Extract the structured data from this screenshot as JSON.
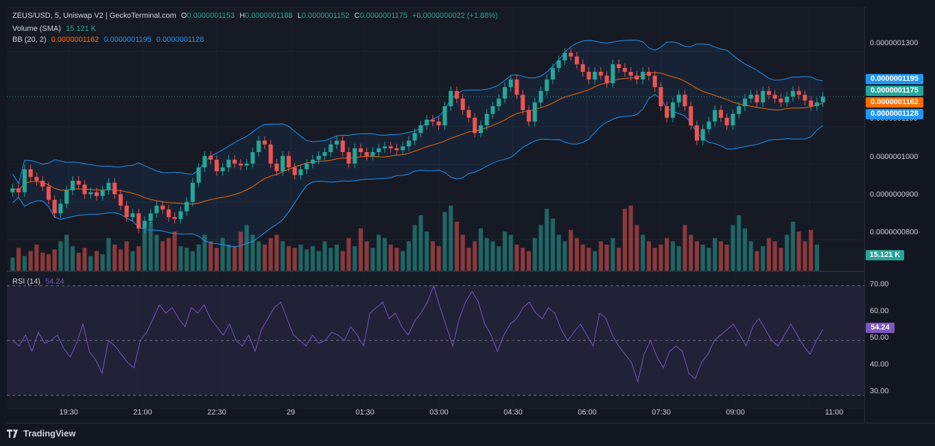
{
  "header": {
    "symbol": "ZEUS/USD, 5, Uniswap V2 | GeckoTerminal.com",
    "o_label": "O",
    "o_value": "0.0000001153",
    "h_label": "H",
    "h_value": "0.0000001188",
    "l_label": "L",
    "l_value": "0.0000001152",
    "c_label": "C",
    "c_value": "0.0000001175",
    "change": "+0.0000000022 (+1.88%)"
  },
  "volume_legend": {
    "label": "Volume (SMA)",
    "value": "15.121 K"
  },
  "bb_legend": {
    "label": "BB (20, 2)",
    "basis": "0.0000001162",
    "upper": "0.0000001195",
    "lower": "0.0000001128"
  },
  "rsi_legend": {
    "label": "RSI (14)",
    "value": "54.24"
  },
  "price_axis": [
    "0.0000001300",
    "0.0000001100",
    "0.0000001000",
    "0.0000000900",
    "0.0000000800"
  ],
  "price_badges": {
    "upper": "0.0000001195",
    "close": "0.0000001175",
    "basis": "0.0000001162",
    "lower": "0.0000001128",
    "volume": "15.121 K"
  },
  "rsi_axis": [
    "70.00",
    "60.00",
    "50.00",
    "40.00",
    "30.00"
  ],
  "rsi_badge": "54.24",
  "time_axis": [
    "19:30",
    "21:00",
    "22:30",
    "29",
    "01:30",
    "03:00",
    "04:30",
    "06:00",
    "07:30",
    "09:00",
    "11:00"
  ],
  "branding": "TradingView",
  "colors": {
    "up": "#26a69a",
    "down": "#ef5350",
    "basis": "#ff6d00",
    "band": "#2196f3",
    "rsi": "#7e57c2"
  },
  "chart_data": {
    "type": "candlestick",
    "price_range": [
      7.2e-08,
      1.41e-07
    ],
    "close_line": 1.175e-07,
    "rsi_range": [
      25,
      75
    ],
    "rsi_levels": [
      70,
      50,
      30
    ],
    "candles_close": [
      9.35e-08,
      9.25e-08,
      9.85e-08,
      9.65e-08,
      9.55e-08,
      9.4e-08,
      9.05e-08,
      8.7e-08,
      8.95e-08,
      9.3e-08,
      9.55e-08,
      9.45e-08,
      9.2e-08,
      9.25e-08,
      9.15e-08,
      9.3e-08,
      9.5e-08,
      9.2e-08,
      8.9e-08,
      8.6e-08,
      8.7e-08,
      8.3e-08,
      8.5e-08,
      8.7e-08,
      8.9e-08,
      8.8e-08,
      8.6e-08,
      8.55e-08,
      8.75e-08,
      9e-08,
      9.5e-08,
      9.9e-08,
      1.02e-07,
      1.01e-07,
      9.8e-08,
      9.9e-08,
      1.01e-07,
      1e-07,
      9.95e-08,
      1e-07,
      1.03e-07,
      1.06e-07,
      1.05e-07,
      1e-07,
      9.8e-08,
      1.02e-07,
      9.9e-08,
      9.7e-08,
      9.85e-08,
      1e-07,
      1.01e-07,
      1.02e-07,
      1.03e-07,
      1.05e-07,
      1.06e-07,
      1.03e-07,
      1e-07,
      1.04e-07,
      1.03e-07,
      1.02e-07,
      1.03e-07,
      1.04e-07,
      1.045e-07,
      1.04e-07,
      1.035e-07,
      1.045e-07,
      1.06e-07,
      1.08e-07,
      1.1e-07,
      1.115e-07,
      1.11e-07,
      1.1e-07,
      1.15e-07,
      1.19e-07,
      1.17e-07,
      1.14e-07,
      1.12e-07,
      1.08e-07,
      1.1e-07,
      1.13e-07,
      1.15e-07,
      1.17e-07,
      1.2e-07,
      1.22e-07,
      1.18e-07,
      1.14e-07,
      1.11e-07,
      1.16e-07,
      1.19e-07,
      1.22e-07,
      1.25e-07,
      1.27e-07,
      1.29e-07,
      1.28e-07,
      1.26e-07,
      1.24e-07,
      1.22e-07,
      1.24e-07,
      1.23e-07,
      1.21e-07,
      1.26e-07,
      1.25e-07,
      1.24e-07,
      1.23e-07,
      1.22e-07,
      1.24e-07,
      1.23e-07,
      1.2e-07,
      1.15e-07,
      1.12e-07,
      1.16e-07,
      1.18e-07,
      1.15e-07,
      1.1e-07,
      1.06e-07,
      1.09e-07,
      1.11e-07,
      1.14e-07,
      1.12e-07,
      1.1e-07,
      1.13e-07,
      1.15e-07,
      1.17e-07,
      1.18e-07,
      1.16e-07,
      1.19e-07,
      1.18e-07,
      1.17e-07,
      1.16e-07,
      1.175e-07,
      1.19e-07,
      1.18e-07,
      1.165e-07,
      1.15e-07,
      1.16e-07,
      1.175e-07
    ],
    "rsi_values": [
      50,
      48,
      52,
      46,
      53,
      49,
      50,
      52,
      47,
      44,
      49,
      56,
      46,
      43,
      38,
      50,
      48,
      45,
      42,
      40,
      50,
      53,
      58,
      63,
      60,
      62,
      58,
      55,
      62,
      60,
      63,
      58,
      55,
      52,
      56,
      50,
      48,
      52,
      46,
      54,
      58,
      62,
      64,
      58,
      52,
      50,
      48,
      52,
      49,
      50,
      53,
      52,
      50,
      55,
      52,
      48,
      60,
      62,
      64,
      58,
      60,
      55,
      52,
      57,
      60,
      64,
      70,
      62,
      55,
      48,
      58,
      64,
      68,
      64,
      56,
      52,
      46,
      52,
      56,
      58,
      62,
      64,
      60,
      58,
      62,
      60,
      54,
      50,
      53,
      56,
      52,
      48,
      60,
      58,
      52,
      48,
      45,
      42,
      35,
      45,
      50,
      44,
      40,
      46,
      48,
      46,
      38,
      36,
      42,
      45,
      50,
      52,
      54,
      56,
      52,
      48,
      55,
      58,
      54,
      50,
      48,
      52,
      56,
      52,
      48,
      45,
      50,
      54
    ],
    "volume": [
      8,
      14,
      9,
      12,
      16,
      11,
      10,
      13,
      18,
      22,
      15,
      11,
      14,
      9,
      12,
      10,
      20,
      16,
      13,
      18,
      12,
      15,
      25,
      30,
      22,
      18,
      20,
      24,
      15,
      14,
      12,
      16,
      22,
      18,
      14,
      20,
      16,
      15,
      24,
      28,
      22,
      18,
      16,
      20,
      22,
      18,
      15,
      14,
      16,
      13,
      15,
      12,
      18,
      14,
      16,
      12,
      20,
      15,
      26,
      18,
      14,
      22,
      20,
      16,
      14,
      12,
      18,
      28,
      34,
      24,
      18,
      15,
      36,
      40,
      30,
      22,
      14,
      18,
      26,
      20,
      18,
      15,
      24,
      22,
      16,
      14,
      12,
      20,
      28,
      38,
      32,
      22,
      18,
      25,
      20,
      16,
      14,
      12,
      18,
      16,
      20,
      14,
      38,
      40,
      28,
      22,
      18,
      14,
      16,
      20,
      18,
      15,
      28,
      22,
      18,
      16,
      14,
      20,
      18,
      16,
      28,
      34,
      26,
      18,
      12,
      15,
      20,
      18,
      14,
      22,
      30,
      24,
      18,
      25,
      16
    ]
  }
}
